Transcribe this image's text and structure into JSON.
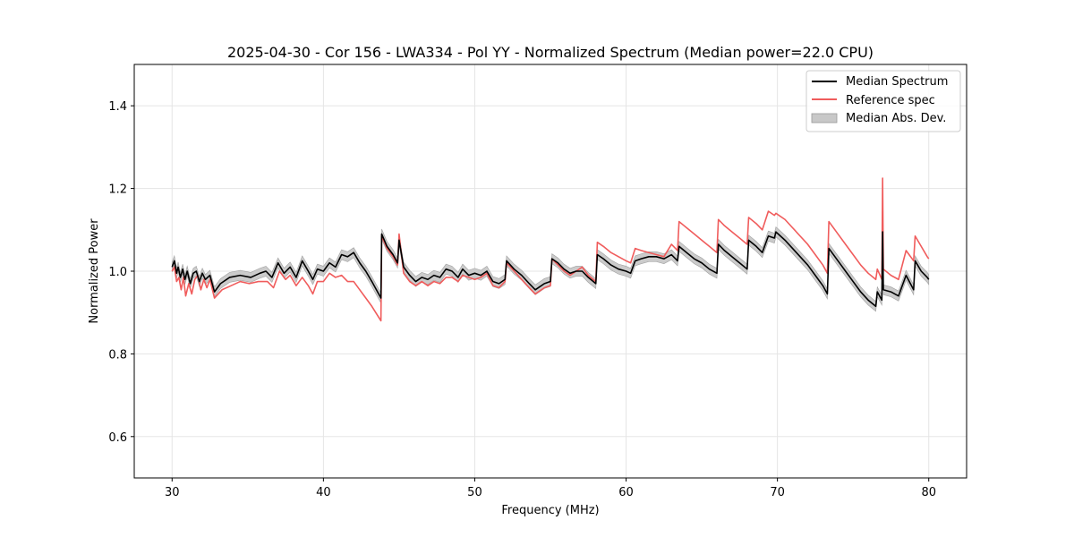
{
  "chart_data": {
    "type": "line",
    "title": "2025-04-30 - Cor 156 - LWA334 - Pol YY - Normalized Spectrum (Median power=22.0 CPU)",
    "xlabel": "Frequency (MHz)",
    "ylabel": "Normalized Power",
    "xlim": [
      27.5,
      82.5
    ],
    "ylim": [
      0.5,
      1.5
    ],
    "xticks": [
      30,
      40,
      50,
      60,
      70,
      80
    ],
    "yticks": [
      0.6,
      0.8,
      1.0,
      1.2,
      1.4
    ],
    "xtick_labels": [
      "30",
      "40",
      "50",
      "60",
      "70",
      "80"
    ],
    "ytick_labels": [
      "0.6",
      "0.8",
      "1.0",
      "1.2",
      "1.4"
    ],
    "grid": true,
    "legend_position": "top-right",
    "mad_width": 0.012,
    "colors": {
      "median": "#000000",
      "reference": "#f05c5c",
      "mad_fill": "#c8c8c8",
      "mad_edge": "#a0a0a0",
      "grid": "#e5e5e5"
    },
    "legend": [
      {
        "label": "Median Spectrum",
        "kind": "line",
        "color": "#000000"
      },
      {
        "label": "Reference spec",
        "kind": "line",
        "color": "#f05c5c"
      },
      {
        "label": "Median Abs. Dev.",
        "kind": "patch",
        "color": "#c8c8c8"
      }
    ],
    "series": [
      {
        "name": "Median Spectrum",
        "x": [
          30.0,
          30.15,
          30.3,
          30.4,
          30.55,
          30.7,
          30.85,
          31.0,
          31.2,
          31.4,
          31.6,
          31.8,
          32.0,
          32.2,
          32.5,
          32.8,
          33.2,
          33.8,
          34.5,
          35.2,
          35.8,
          36.2,
          36.6,
          37.0,
          37.4,
          37.8,
          38.2,
          38.6,
          39.0,
          39.3,
          39.6,
          40.0,
          40.4,
          40.8,
          41.2,
          41.6,
          42.0,
          42.4,
          42.8,
          43.2,
          43.8,
          43.85,
          44.2,
          44.6,
          44.9,
          45.0,
          45.3,
          45.7,
          46.1,
          46.5,
          46.9,
          47.3,
          47.7,
          48.1,
          48.5,
          48.9,
          49.2,
          49.6,
          50.0,
          50.4,
          50.8,
          51.2,
          51.6,
          52.0,
          52.1,
          52.6,
          53.1,
          53.6,
          54.0,
          54.4,
          54.6,
          55.0,
          55.1,
          55.5,
          55.9,
          56.3,
          56.7,
          57.1,
          57.5,
          58.0,
          58.1,
          58.5,
          59.0,
          59.5,
          60.0,
          60.3,
          60.6,
          61.0,
          61.5,
          62.0,
          62.5,
          63.0,
          63.4,
          63.5,
          64.0,
          64.5,
          65.0,
          65.5,
          66.0,
          66.1,
          66.5,
          67.0,
          67.5,
          68.0,
          68.1,
          68.6,
          69.0,
          69.4,
          69.8,
          69.9,
          70.5,
          71.0,
          71.5,
          72.0,
          72.5,
          73.0,
          73.3,
          73.4,
          74.0,
          74.5,
          75.0,
          75.5,
          76.0,
          76.5,
          76.6,
          76.9,
          76.95,
          77.0,
          77.5,
          78.0,
          78.5,
          79.0,
          79.1,
          79.5,
          79.9,
          80.0
        ],
        "values": [
          1.01,
          1.025,
          0.995,
          1.01,
          0.985,
          1.005,
          0.98,
          1.0,
          0.97,
          0.995,
          1.0,
          0.975,
          0.995,
          0.98,
          0.99,
          0.95,
          0.97,
          0.985,
          0.99,
          0.985,
          0.995,
          1.0,
          0.985,
          1.02,
          0.995,
          1.01,
          0.985,
          1.025,
          1.0,
          0.98,
          1.005,
          1.0,
          1.02,
          1.01,
          1.04,
          1.035,
          1.045,
          1.02,
          1.0,
          0.975,
          0.935,
          1.09,
          1.06,
          1.04,
          1.02,
          1.075,
          1.01,
          0.99,
          0.975,
          0.985,
          0.98,
          0.99,
          0.985,
          1.005,
          1.0,
          0.985,
          1.005,
          0.99,
          0.995,
          0.99,
          1.0,
          0.975,
          0.97,
          0.98,
          1.025,
          1.005,
          0.99,
          0.97,
          0.955,
          0.965,
          0.97,
          0.975,
          1.03,
          1.02,
          1.005,
          0.995,
          1.0,
          1.0,
          0.985,
          0.97,
          1.04,
          1.03,
          1.015,
          1.005,
          1.0,
          0.995,
          1.025,
          1.03,
          1.035,
          1.035,
          1.03,
          1.04,
          1.025,
          1.06,
          1.045,
          1.03,
          1.02,
          1.005,
          0.995,
          1.065,
          1.05,
          1.035,
          1.02,
          1.005,
          1.075,
          1.06,
          1.045,
          1.085,
          1.08,
          1.095,
          1.075,
          1.055,
          1.035,
          1.015,
          0.99,
          0.965,
          0.945,
          1.055,
          1.025,
          1.0,
          0.975,
          0.95,
          0.93,
          0.915,
          0.95,
          0.93,
          1.095,
          0.955,
          0.95,
          0.94,
          0.99,
          0.955,
          1.025,
          1.0,
          0.985,
          0.98
        ]
      },
      {
        "name": "Reference spec",
        "x": [
          30.0,
          30.15,
          30.3,
          30.45,
          30.6,
          30.75,
          30.9,
          31.1,
          31.3,
          31.5,
          31.7,
          31.9,
          32.1,
          32.3,
          32.5,
          32.8,
          33.3,
          33.9,
          34.5,
          35.1,
          35.7,
          36.3,
          36.7,
          37.1,
          37.5,
          37.8,
          38.2,
          38.6,
          39.0,
          39.3,
          39.6,
          40.0,
          40.4,
          40.8,
          41.2,
          41.6,
          42.0,
          42.4,
          42.8,
          43.2,
          43.8,
          43.85,
          44.2,
          44.6,
          44.9,
          45.0,
          45.3,
          45.7,
          46.1,
          46.5,
          46.9,
          47.3,
          47.7,
          48.1,
          48.5,
          48.9,
          49.2,
          49.6,
          50.0,
          50.4,
          50.8,
          51.2,
          51.6,
          52.0,
          52.1,
          52.6,
          53.1,
          53.6,
          54.0,
          54.4,
          54.6,
          55.0,
          55.1,
          55.5,
          55.9,
          56.3,
          56.7,
          57.1,
          57.5,
          58.0,
          58.1,
          58.5,
          59.0,
          59.5,
          60.0,
          60.3,
          60.6,
          61.0,
          61.5,
          62.0,
          62.5,
          63.0,
          63.4,
          63.5,
          64.0,
          64.5,
          65.0,
          65.5,
          66.0,
          66.1,
          66.5,
          67.0,
          67.5,
          68.0,
          68.1,
          68.6,
          69.0,
          69.4,
          69.8,
          69.9,
          70.5,
          71.0,
          71.5,
          72.0,
          72.5,
          73.0,
          73.3,
          73.4,
          74.0,
          74.5,
          75.0,
          75.5,
          76.0,
          76.5,
          76.6,
          76.9,
          76.95,
          77.0,
          77.5,
          78.0,
          78.5,
          79.0,
          79.1,
          79.5,
          79.9,
          80.0
        ],
        "values": [
          1.0,
          1.01,
          0.975,
          0.985,
          0.955,
          0.985,
          0.94,
          0.97,
          0.945,
          0.98,
          0.99,
          0.955,
          0.98,
          0.96,
          0.98,
          0.935,
          0.955,
          0.965,
          0.975,
          0.97,
          0.975,
          0.975,
          0.96,
          1.0,
          0.98,
          0.99,
          0.965,
          0.985,
          0.965,
          0.945,
          0.975,
          0.975,
          0.995,
          0.985,
          0.99,
          0.975,
          0.975,
          0.955,
          0.935,
          0.915,
          0.88,
          1.085,
          1.055,
          1.035,
          1.015,
          1.09,
          0.995,
          0.975,
          0.965,
          0.975,
          0.965,
          0.975,
          0.97,
          0.985,
          0.985,
          0.975,
          0.99,
          0.985,
          0.98,
          0.985,
          0.995,
          0.965,
          0.96,
          0.975,
          1.02,
          1.0,
          0.98,
          0.96,
          0.945,
          0.955,
          0.96,
          0.965,
          1.03,
          1.015,
          1.0,
          0.99,
          1.0,
          1.01,
          0.99,
          0.975,
          1.07,
          1.06,
          1.045,
          1.035,
          1.025,
          1.02,
          1.055,
          1.05,
          1.045,
          1.04,
          1.035,
          1.065,
          1.05,
          1.12,
          1.105,
          1.09,
          1.075,
          1.06,
          1.045,
          1.125,
          1.11,
          1.095,
          1.08,
          1.065,
          1.13,
          1.115,
          1.1,
          1.145,
          1.135,
          1.14,
          1.125,
          1.105,
          1.085,
          1.065,
          1.04,
          1.015,
          0.995,
          1.12,
          1.09,
          1.065,
          1.04,
          1.015,
          0.995,
          0.98,
          1.005,
          0.98,
          1.225,
          1.005,
          0.99,
          0.98,
          1.05,
          1.025,
          1.085,
          1.06,
          1.035,
          1.03
        ]
      }
    ]
  }
}
